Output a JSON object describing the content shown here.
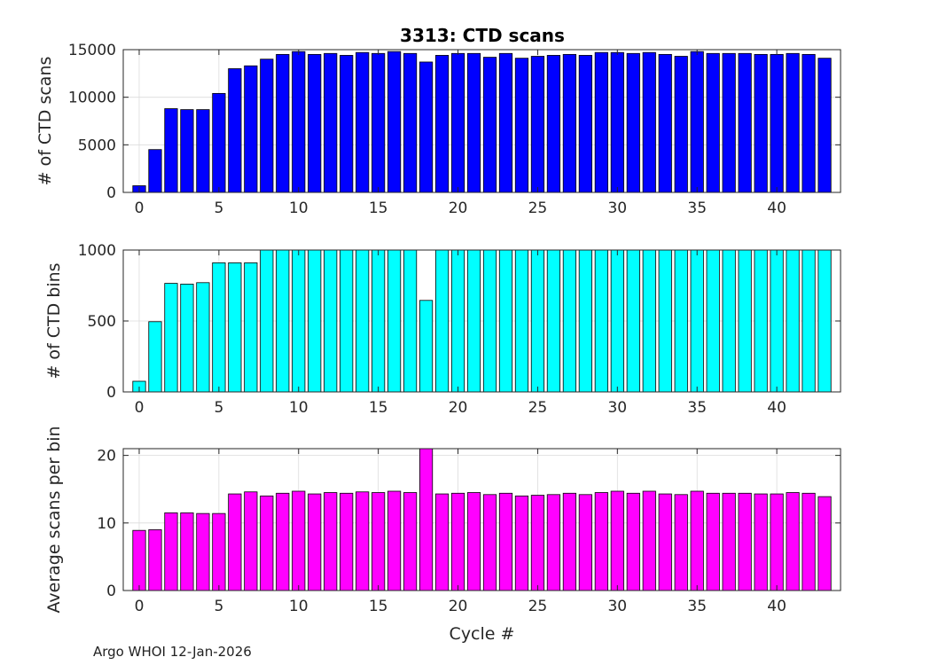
{
  "title": "3313: CTD scans",
  "footer": "Argo WHOI 12-Jan-2026",
  "chart_data": [
    {
      "type": "bar",
      "ylabel": "# of CTD scans",
      "xlabel": "",
      "xlim": [
        -1,
        44
      ],
      "ylim": [
        0,
        15000
      ],
      "yticks": [
        0,
        5000,
        10000,
        15000
      ],
      "xticks": [
        0,
        5,
        10,
        15,
        20,
        25,
        30,
        35,
        40
      ],
      "grid": true,
      "color": "#0000ff",
      "x": [
        0,
        1,
        2,
        3,
        4,
        5,
        6,
        7,
        8,
        9,
        10,
        11,
        12,
        13,
        14,
        15,
        16,
        17,
        18,
        19,
        20,
        21,
        22,
        23,
        24,
        25,
        26,
        27,
        28,
        29,
        30,
        31,
        32,
        33,
        34,
        35,
        36,
        37,
        38,
        39,
        40,
        41,
        42,
        43
      ],
      "values": [
        700,
        4500,
        8800,
        8700,
        8700,
        10400,
        13000,
        13300,
        14000,
        14500,
        14800,
        14500,
        14600,
        14400,
        14700,
        14600,
        14800,
        14600,
        13700,
        14400,
        14600,
        14600,
        14200,
        14600,
        14100,
        14300,
        14400,
        14500,
        14400,
        14700,
        14700,
        14600,
        14700,
        14500,
        14300,
        14800,
        14600,
        14600,
        14600,
        14500,
        14500,
        14600,
        14500,
        14100
      ]
    },
    {
      "type": "bar",
      "ylabel": "# of CTD bins",
      "xlabel": "",
      "xlim": [
        -1,
        44
      ],
      "ylim": [
        0,
        1000
      ],
      "yticks": [
        0,
        500,
        1000
      ],
      "xticks": [
        0,
        5,
        10,
        15,
        20,
        25,
        30,
        35,
        40
      ],
      "grid": true,
      "color": "#00ffff",
      "x": [
        0,
        1,
        2,
        3,
        4,
        5,
        6,
        7,
        8,
        9,
        10,
        11,
        12,
        13,
        14,
        15,
        16,
        17,
        18,
        19,
        20,
        21,
        22,
        23,
        24,
        25,
        26,
        27,
        28,
        29,
        30,
        31,
        32,
        33,
        34,
        35,
        36,
        37,
        38,
        39,
        40,
        41,
        42,
        43
      ],
      "values": [
        75,
        495,
        765,
        760,
        770,
        910,
        910,
        910,
        1000,
        1000,
        1000,
        1000,
        1000,
        1000,
        1000,
        1000,
        1000,
        1000,
        645,
        1000,
        1000,
        1000,
        1000,
        1000,
        1000,
        1000,
        1000,
        1000,
        1000,
        1000,
        1000,
        1000,
        1000,
        1000,
        1000,
        1000,
        1000,
        1000,
        1000,
        1000,
        1000,
        1000,
        1000,
        1000
      ]
    },
    {
      "type": "bar",
      "ylabel": "Average scans per bin",
      "xlabel": "Cycle #",
      "xlim": [
        -1,
        44
      ],
      "ylim": [
        0,
        21
      ],
      "yticks": [
        0,
        10,
        20
      ],
      "xticks": [
        0,
        5,
        10,
        15,
        20,
        25,
        30,
        35,
        40
      ],
      "grid": true,
      "color": "#ff00ff",
      "x": [
        0,
        1,
        2,
        3,
        4,
        5,
        6,
        7,
        8,
        9,
        10,
        11,
        12,
        13,
        14,
        15,
        16,
        17,
        18,
        19,
        20,
        21,
        22,
        23,
        24,
        25,
        26,
        27,
        28,
        29,
        30,
        31,
        32,
        33,
        34,
        35,
        36,
        37,
        38,
        39,
        40,
        41,
        42,
        43
      ],
      "values": [
        8.9,
        9.0,
        11.5,
        11.5,
        11.4,
        11.4,
        14.3,
        14.6,
        14.0,
        14.4,
        14.7,
        14.3,
        14.5,
        14.4,
        14.6,
        14.5,
        14.7,
        14.5,
        21.0,
        14.3,
        14.4,
        14.5,
        14.2,
        14.4,
        14.0,
        14.1,
        14.2,
        14.4,
        14.2,
        14.5,
        14.7,
        14.4,
        14.7,
        14.3,
        14.2,
        14.7,
        14.4,
        14.4,
        14.4,
        14.3,
        14.3,
        14.5,
        14.4,
        13.9
      ]
    }
  ]
}
